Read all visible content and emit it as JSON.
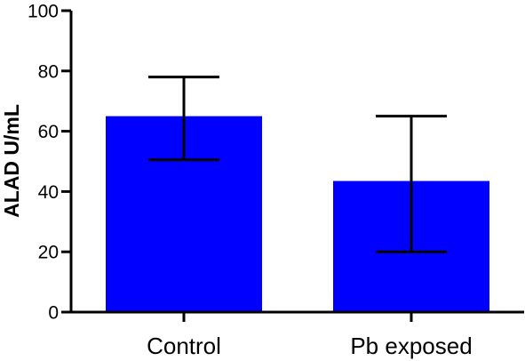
{
  "chart_data": {
    "type": "bar",
    "categories": [
      "Control",
      "Pb  exposed"
    ],
    "values": [
      65,
      43.5
    ],
    "error_low": [
      50.5,
      20
    ],
    "error_high": [
      78,
      65
    ],
    "title": "",
    "xlabel": "",
    "ylabel": "ALAD U/mL",
    "ylim": [
      0,
      100
    ],
    "yticks": [
      0,
      20,
      40,
      60,
      80,
      100
    ],
    "grid": false,
    "bar_color": "#0000ff",
    "axis_color": "#000000"
  }
}
